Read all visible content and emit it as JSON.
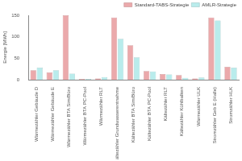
{
  "chart_data": {
    "type": "bar",
    "y_label": "Energie [MWh]",
    "categories": [
      "Wärmezähler Gebäude D",
      "Wärmezähler Gebäude E",
      "Wärmezähler BTA Sim/Büro",
      "Wärmezähler BTA PC-Pool",
      "Wärmezähler RLT",
      "Kältezähler Grundwasserentnahme",
      "Kältezähler BTA Sim/Büro",
      "Kältezähler BTA PC-Pool",
      "Kältezähler RLT",
      "Kältezähler Kühlbalken",
      "Wärmezähler ULK",
      "Stromzähler Geb E (Halle)",
      "Stromzähler HLK"
    ],
    "series": [
      {
        "name": "Standard-TABS-Strategie",
        "color": "#eba9ab",
        "values": [
          22,
          17,
          150,
          2,
          3,
          145,
          80,
          20,
          13,
          11,
          3,
          145,
          30
        ]
      },
      {
        "name": "AMLR-Strategie",
        "color": "#b9ecec",
        "values": [
          28,
          22,
          14,
          2,
          6,
          95,
          52,
          19,
          12,
          4,
          5,
          138,
          28
        ]
      }
    ],
    "ylim": [
      0,
      150
    ],
    "yticks": [
      0,
      50,
      100,
      150
    ],
    "grid": false,
    "legend": "top-right"
  }
}
